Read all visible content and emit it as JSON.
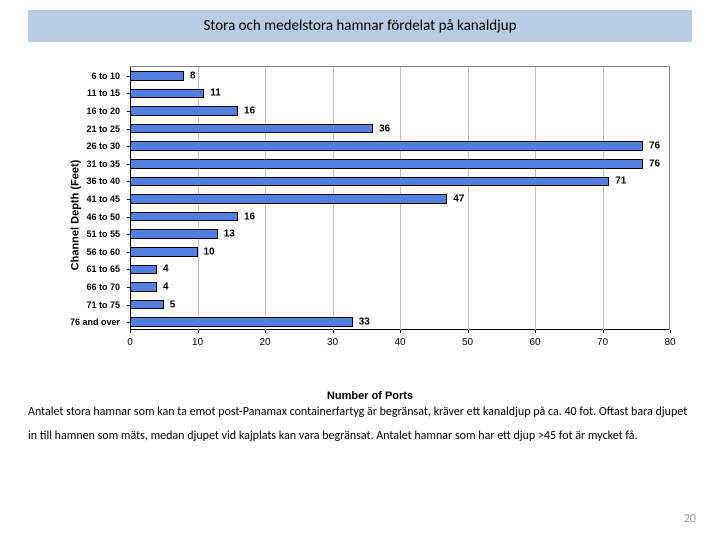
{
  "title": "Stora och medelstora hamnar fördelat på kanaldjup",
  "body_text": "Antalet stora hamnar som kan ta emot post-Panamax containerfartyg är begränsat, kräver ett kanaldjup på ca. 40 fot. Oftast bara djupet in till hamnen som mäts, medan djupet vid kajplats kan vara begränsat. Antalet hamnar som har ett djup >45 fot är mycket få.",
  "page_number": "20",
  "chart": {
    "type": "bar-horizontal",
    "y_axis_title": "Channel Depth (Feet)",
    "x_axis_title": "Number of Ports",
    "xlim": [
      0,
      80
    ],
    "xtick_step": 10,
    "categories": [
      "6 to 10",
      "11 to 15",
      "16 to 20",
      "21 to 25",
      "26 to 30",
      "31 to 35",
      "36 to 40",
      "41 to 45",
      "46 to 50",
      "51 to 55",
      "56 to 60",
      "61 to 65",
      "66 to 70",
      "71 to 75",
      "76 and over"
    ],
    "values": [
      8,
      11,
      16,
      36,
      76,
      76,
      71,
      47,
      16,
      13,
      10,
      4,
      4,
      5,
      33
    ],
    "bar_fill": "#5080e0",
    "bar_border": "#000000",
    "grid_color": "#c0c0c0",
    "value_label_fontsize": 10,
    "cat_label_fontsize": 9,
    "axis_title_fontsize": 11,
    "tick_label_fontsize": 10,
    "plot_border_color": "#808080",
    "background": "#ffffff"
  }
}
